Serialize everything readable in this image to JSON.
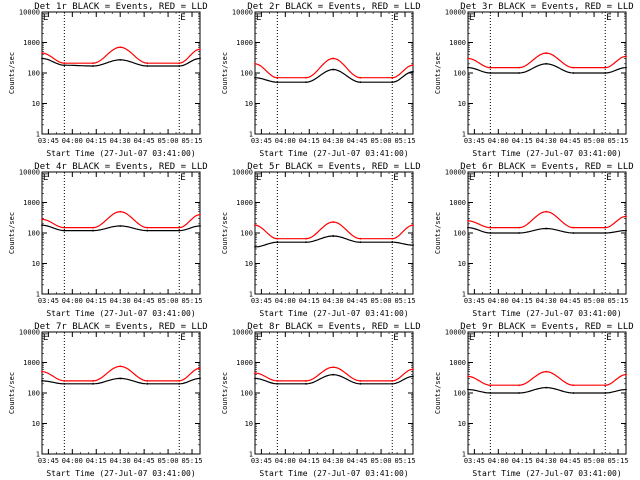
{
  "chart_data": [
    {
      "type": "line",
      "title": "Det 1r BLACK = Events, RED = LLD",
      "xlabel": "Start Time (27-Jul-07 03:41:00)",
      "ylabel": "Counts/sec",
      "xticks": [
        "03:45",
        "04:00",
        "04:15",
        "04:30",
        "04:45",
        "05:00",
        "05:15"
      ],
      "yticks": [
        "1",
        "10",
        "100",
        "1000",
        "10000"
      ],
      "yscale": "log",
      "ylim": [
        1,
        10000
      ],
      "xlim": [
        "03:41",
        "05:20"
      ],
      "vlines": [
        "03:55",
        "05:07"
      ],
      "corner_marks": [
        "E",
        "E"
      ],
      "series": [
        {
          "color": "#000000",
          "x": [
            "03:41",
            "03:55",
            "04:13",
            "04:30",
            "04:47",
            "05:07",
            "05:20"
          ],
          "values": [
            300,
            180,
            170,
            270,
            170,
            170,
            300
          ]
        },
        {
          "color": "#ff0000",
          "x": [
            "03:41",
            "03:55",
            "04:13",
            "04:30",
            "04:47",
            "05:07",
            "05:20"
          ],
          "values": [
            450,
            210,
            210,
            700,
            210,
            210,
            600
          ]
        }
      ]
    },
    {
      "type": "line",
      "title": "Det 2r BLACK = Events, RED = LLD",
      "xlabel": "Start Time (27-Jul-07 03:41:00)",
      "ylabel": "Counts/sec",
      "xticks": [
        "03:45",
        "04:00",
        "04:15",
        "04:30",
        "04:45",
        "05:00",
        "05:15"
      ],
      "yticks": [
        "1",
        "10",
        "100",
        "1000",
        "10000"
      ],
      "yscale": "log",
      "ylim": [
        1,
        10000
      ],
      "xlim": [
        "03:41",
        "05:20"
      ],
      "vlines": [
        "03:55",
        "05:07"
      ],
      "corner_marks": [
        "E",
        "E"
      ],
      "series": [
        {
          "color": "#000000",
          "x": [
            "03:41",
            "03:55",
            "04:13",
            "04:30",
            "04:47",
            "05:07",
            "05:20"
          ],
          "values": [
            70,
            50,
            50,
            130,
            50,
            50,
            110
          ]
        },
        {
          "color": "#ff0000",
          "x": [
            "03:41",
            "03:55",
            "04:13",
            "04:30",
            "04:47",
            "05:07",
            "05:20"
          ],
          "values": [
            200,
            70,
            70,
            300,
            70,
            70,
            180
          ]
        }
      ]
    },
    {
      "type": "line",
      "title": "Det 3r BLACK = Events, RED = LLD",
      "xlabel": "Start Time (27-Jul-07 03:41:00)",
      "ylabel": "Counts/sec",
      "xticks": [
        "03:45",
        "04:00",
        "04:15",
        "04:30",
        "04:45",
        "05:00",
        "05:15"
      ],
      "yticks": [
        "1",
        "10",
        "100",
        "1000",
        "10000"
      ],
      "yscale": "log",
      "ylim": [
        1,
        10000
      ],
      "xlim": [
        "03:41",
        "05:20"
      ],
      "vlines": [
        "03:55",
        "05:07"
      ],
      "corner_marks": [
        "E",
        "E"
      ],
      "series": [
        {
          "color": "#000000",
          "x": [
            "03:41",
            "03:55",
            "04:13",
            "04:30",
            "04:47",
            "05:07",
            "05:20"
          ],
          "values": [
            150,
            100,
            100,
            200,
            100,
            100,
            150
          ]
        },
        {
          "color": "#ff0000",
          "x": [
            "03:41",
            "03:55",
            "04:13",
            "04:30",
            "04:47",
            "05:07",
            "05:20"
          ],
          "values": [
            300,
            150,
            150,
            450,
            150,
            150,
            350
          ]
        }
      ]
    },
    {
      "type": "line",
      "title": "Det 4r BLACK = Events, RED = LLD",
      "xlabel": "Start Time (27-Jul-07 03:41:00)",
      "ylabel": "Counts/sec",
      "xticks": [
        "03:45",
        "04:00",
        "04:15",
        "04:30",
        "04:45",
        "05:00",
        "05:15"
      ],
      "yticks": [
        "1",
        "10",
        "100",
        "1000",
        "10000"
      ],
      "yscale": "log",
      "ylim": [
        1,
        10000
      ],
      "xlim": [
        "03:41",
        "05:20"
      ],
      "vlines": [
        "03:55",
        "05:07"
      ],
      "corner_marks": [
        "E",
        "E"
      ],
      "series": [
        {
          "color": "#000000",
          "x": [
            "03:41",
            "03:55",
            "04:13",
            "04:30",
            "04:47",
            "05:07",
            "05:20"
          ],
          "values": [
            180,
            120,
            120,
            170,
            120,
            120,
            170
          ]
        },
        {
          "color": "#ff0000",
          "x": [
            "03:41",
            "03:55",
            "04:13",
            "04:30",
            "04:47",
            "05:07",
            "05:20"
          ],
          "values": [
            280,
            150,
            150,
            500,
            150,
            150,
            400
          ]
        }
      ]
    },
    {
      "type": "line",
      "title": "Det 5r BLACK = Events, RED = LLD",
      "xlabel": "Start Time (27-Jul-07 03:41:00)",
      "ylabel": "Counts/sec",
      "xticks": [
        "03:45",
        "04:00",
        "04:15",
        "04:30",
        "04:45",
        "05:00",
        "05:15"
      ],
      "yticks": [
        "1",
        "10",
        "100",
        "1000",
        "10000"
      ],
      "yscale": "log",
      "ylim": [
        1,
        10000
      ],
      "xlim": [
        "03:41",
        "05:20"
      ],
      "vlines": [
        "03:55",
        "05:07"
      ],
      "corner_marks": [
        "E",
        "E"
      ],
      "series": [
        {
          "color": "#000000",
          "x": [
            "03:41",
            "03:55",
            "04:13",
            "04:30",
            "04:47",
            "05:07",
            "05:20"
          ],
          "values": [
            35,
            50,
            50,
            80,
            50,
            50,
            40
          ]
        },
        {
          "color": "#ff0000",
          "x": [
            "03:41",
            "03:55",
            "04:13",
            "04:30",
            "04:47",
            "05:07",
            "05:20"
          ],
          "values": [
            180,
            65,
            65,
            230,
            65,
            65,
            180
          ]
        }
      ]
    },
    {
      "type": "line",
      "title": "Det 6r BLACK = Events, RED = LLD",
      "xlabel": "Start Time (27-Jul-07 03:41:00)",
      "ylabel": "Counts/sec",
      "xticks": [
        "03:45",
        "04:00",
        "04:15",
        "04:30",
        "04:45",
        "05:00",
        "05:15"
      ],
      "yticks": [
        "1",
        "10",
        "100",
        "1000",
        "10000"
      ],
      "yscale": "log",
      "ylim": [
        1,
        10000
      ],
      "xlim": [
        "03:41",
        "05:20"
      ],
      "vlines": [
        "03:55",
        "05:07"
      ],
      "corner_marks": [
        "E",
        "E"
      ],
      "series": [
        {
          "color": "#000000",
          "x": [
            "03:41",
            "03:55",
            "04:13",
            "04:30",
            "04:47",
            "05:07",
            "05:20"
          ],
          "values": [
            150,
            100,
            100,
            140,
            100,
            100,
            120
          ]
        },
        {
          "color": "#ff0000",
          "x": [
            "03:41",
            "03:55",
            "04:13",
            "04:30",
            "04:47",
            "05:07",
            "05:20"
          ],
          "values": [
            250,
            150,
            150,
            500,
            150,
            150,
            350
          ]
        }
      ]
    },
    {
      "type": "line",
      "title": "Det 7r BLACK = Events, RED = LLD",
      "xlabel": "Start Time (27-Jul-07 03:41:00)",
      "ylabel": "Counts/sec",
      "xticks": [
        "03:45",
        "04:00",
        "04:15",
        "04:30",
        "04:45",
        "05:00",
        "05:15"
      ],
      "yticks": [
        "1",
        "10",
        "100",
        "1000",
        "10000"
      ],
      "yscale": "log",
      "ylim": [
        1,
        10000
      ],
      "xlim": [
        "03:41",
        "05:20"
      ],
      "vlines": [
        "03:55",
        "05:07"
      ],
      "corner_marks": [
        "E",
        "E"
      ],
      "series": [
        {
          "color": "#000000",
          "x": [
            "03:41",
            "03:55",
            "04:13",
            "04:30",
            "04:47",
            "05:07",
            "05:20"
          ],
          "values": [
            250,
            200,
            200,
            300,
            200,
            200,
            300
          ]
        },
        {
          "color": "#ff0000",
          "x": [
            "03:41",
            "03:55",
            "04:13",
            "04:30",
            "04:47",
            "05:07",
            "05:20"
          ],
          "values": [
            500,
            250,
            250,
            750,
            250,
            250,
            650
          ]
        }
      ]
    },
    {
      "type": "line",
      "title": "Det 8r BLACK = Events, RED = LLD",
      "xlabel": "Start Time (27-Jul-07 03:41:00)",
      "ylabel": "Counts/sec",
      "xticks": [
        "03:45",
        "04:00",
        "04:15",
        "04:30",
        "04:45",
        "05:00",
        "05:15"
      ],
      "yticks": [
        "1",
        "10",
        "100",
        "1000",
        "10000"
      ],
      "yscale": "log",
      "ylim": [
        1,
        10000
      ],
      "xlim": [
        "03:41",
        "05:20"
      ],
      "vlines": [
        "03:55",
        "05:07"
      ],
      "corner_marks": [
        "E",
        "E"
      ],
      "series": [
        {
          "color": "#000000",
          "x": [
            "03:41",
            "03:55",
            "04:13",
            "04:30",
            "04:47",
            "05:07",
            "05:20"
          ],
          "values": [
            300,
            200,
            200,
            400,
            200,
            200,
            350
          ]
        },
        {
          "color": "#ff0000",
          "x": [
            "03:41",
            "03:55",
            "04:13",
            "04:30",
            "04:47",
            "05:07",
            "05:20"
          ],
          "values": [
            450,
            250,
            250,
            700,
            250,
            250,
            600
          ]
        }
      ]
    },
    {
      "type": "line",
      "title": "Det 9r BLACK = Events, RED = LLD",
      "xlabel": "Start Time (27-Jul-07 03:41:00)",
      "ylabel": "Counts/sec",
      "xticks": [
        "03:45",
        "04:00",
        "04:15",
        "04:30",
        "04:45",
        "05:00",
        "05:15"
      ],
      "yticks": [
        "1",
        "10",
        "100",
        "1000",
        "10000"
      ],
      "yscale": "log",
      "ylim": [
        1,
        10000
      ],
      "xlim": [
        "03:41",
        "05:20"
      ],
      "vlines": [
        "03:55",
        "05:07"
      ],
      "corner_marks": [
        "E",
        "E"
      ],
      "series": [
        {
          "color": "#000000",
          "x": [
            "03:41",
            "03:55",
            "04:13",
            "04:30",
            "04:47",
            "05:07",
            "05:20"
          ],
          "values": [
            130,
            100,
            100,
            150,
            100,
            100,
            130
          ]
        },
        {
          "color": "#ff0000",
          "x": [
            "03:41",
            "03:55",
            "04:13",
            "04:30",
            "04:47",
            "05:07",
            "05:20"
          ],
          "values": [
            350,
            180,
            180,
            500,
            180,
            180,
            400
          ]
        }
      ]
    }
  ]
}
